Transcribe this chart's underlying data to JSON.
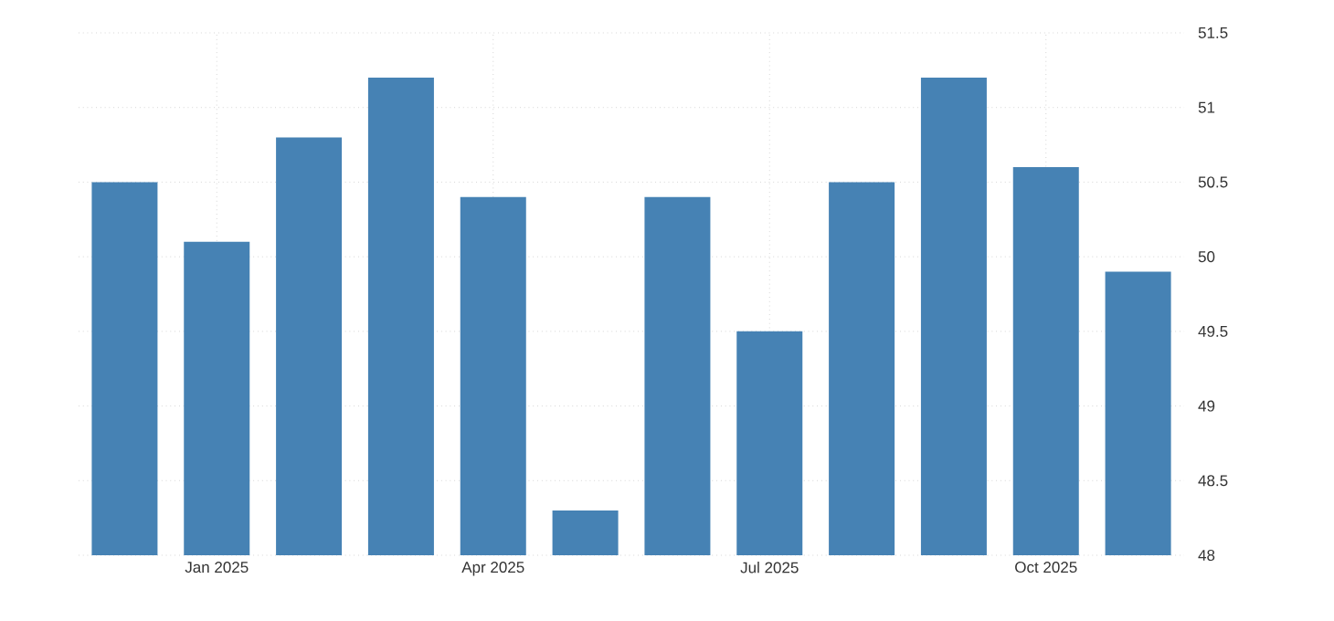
{
  "chart_data": {
    "type": "bar",
    "categories": [
      null,
      "Jan 2025",
      null,
      null,
      "Apr 2025",
      null,
      null,
      "Jul 2025",
      null,
      null,
      "Oct 2025",
      null
    ],
    "values": [
      50.5,
      50.1,
      50.8,
      51.2,
      50.4,
      48.3,
      50.4,
      49.5,
      50.5,
      51.2,
      50.6,
      49.9
    ],
    "color": "#4682b4",
    "ylim": [
      48,
      51.5
    ],
    "yticks": [
      48,
      48.5,
      49,
      49.5,
      50,
      50.5,
      51,
      51.5
    ],
    "grid": true
  }
}
